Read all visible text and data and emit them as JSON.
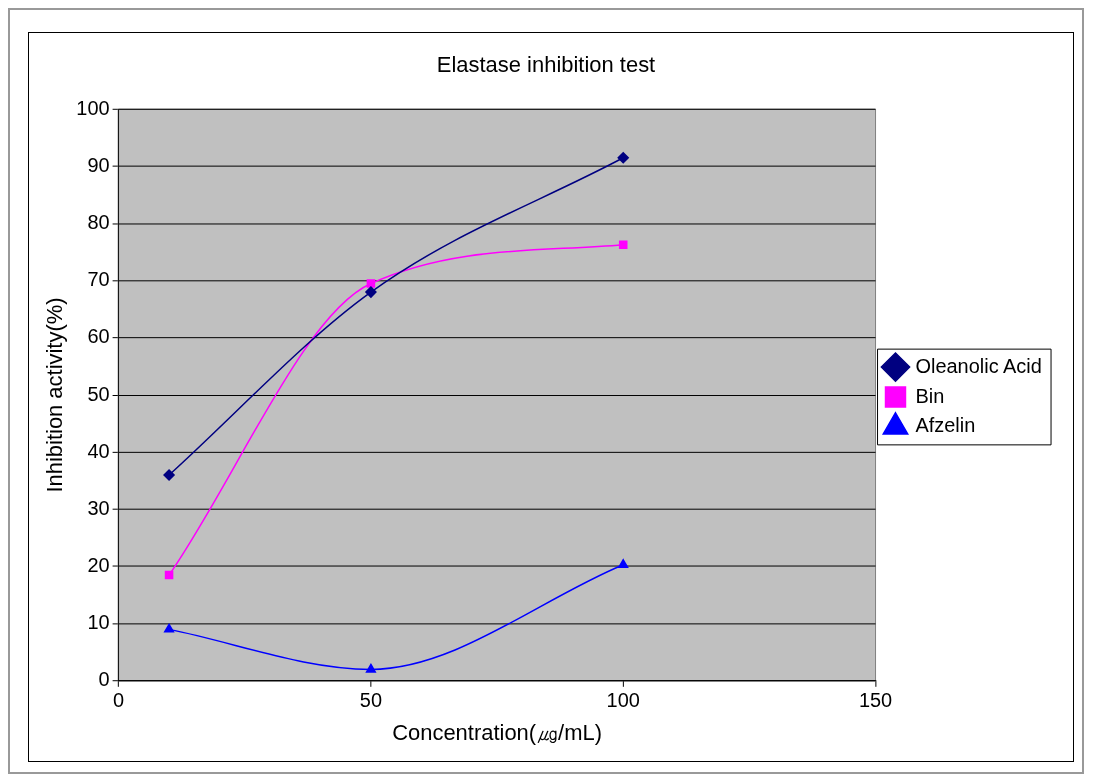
{
  "chart_data": {
    "type": "line",
    "title": "Elastase inhibition test",
    "xlabel": "Concentration(㎍/mL)",
    "ylabel": "Inhibition activity(%)",
    "x": [
      10,
      50,
      100
    ],
    "series": [
      {
        "name": "Oleanolic Acid",
        "color": "#000080",
        "marker": "diamond",
        "values": [
          36,
          68,
          91.5
        ]
      },
      {
        "name": "Bin",
        "color": "#ff00ff",
        "marker": "square",
        "values": [
          18.5,
          69.5,
          76.3
        ]
      },
      {
        "name": "Afzelin",
        "color": "#0000ff",
        "marker": "triangle",
        "values": [
          9,
          2,
          20.3
        ]
      }
    ],
    "xlim": [
      0,
      150
    ],
    "xticks": [
      0,
      50,
      100,
      150
    ],
    "ylim": [
      0,
      100
    ],
    "yticks": [
      0,
      10,
      20,
      30,
      40,
      50,
      60,
      70,
      80,
      90,
      100
    ],
    "grid": "y",
    "legend": "right",
    "line_style": "solid"
  }
}
